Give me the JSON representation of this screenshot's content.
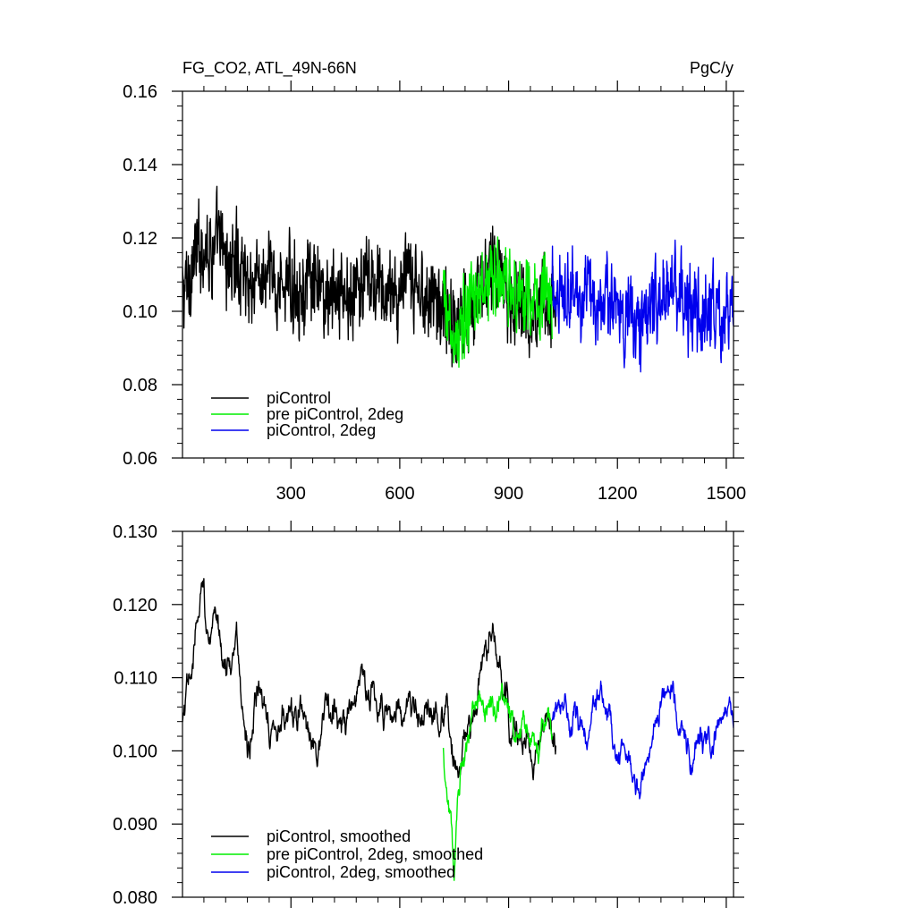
{
  "chart_data": [
    {
      "type": "line",
      "title": "FG_CO2, ATL_49N-66N",
      "units": "PgC/y",
      "xlim": [
        1,
        1520
      ],
      "ylim": [
        0.06,
        0.16
      ],
      "x_ticks": [
        300,
        600,
        900,
        1200,
        1500
      ],
      "y_ticks": [
        0.06,
        0.08,
        0.1,
        0.12,
        0.14,
        0.16
      ],
      "y_tick_labels": [
        "0.06",
        "0.08",
        "0.10",
        "0.12",
        "0.14",
        "0.16"
      ],
      "grid": false,
      "legend_position": "bottom-left",
      "series": [
        {
          "name": "piControl",
          "color": "#000000",
          "x_start": 1,
          "x_end": 1030,
          "mean": 0.107,
          "noise": 0.011,
          "values_by_century": [
            [
              0,
              0.103
            ],
            [
              30,
              0.113
            ],
            [
              60,
              0.12
            ],
            [
              100,
              0.116
            ],
            [
              150,
              0.112
            ],
            [
              200,
              0.108
            ],
            [
              300,
              0.107
            ],
            [
              400,
              0.105
            ],
            [
              500,
              0.106
            ],
            [
              600,
              0.106
            ],
            [
              700,
              0.104
            ],
            [
              750,
              0.096
            ],
            [
              800,
              0.103
            ],
            [
              860,
              0.113
            ],
            [
              900,
              0.104
            ],
            [
              1000,
              0.102
            ],
            [
              1030,
              0.102
            ]
          ]
        },
        {
          "name": "pre piControl, 2deg",
          "color": "#00ee00",
          "x_start": 720,
          "x_end": 1020,
          "mean": 0.104,
          "noise": 0.01,
          "values_by_century": [
            [
              720,
              0.102
            ],
            [
              750,
              0.09
            ],
            [
              780,
              0.098
            ],
            [
              850,
              0.11
            ],
            [
              900,
              0.106
            ],
            [
              950,
              0.105
            ],
            [
              1020,
              0.104
            ]
          ]
        },
        {
          "name": "piControl, 2deg",
          "color": "#0000ee",
          "x_start": 1020,
          "x_end": 1520,
          "mean": 0.102,
          "noise": 0.01,
          "values_by_century": [
            [
              1020,
              0.104
            ],
            [
              1050,
              0.108
            ],
            [
              1100,
              0.103
            ],
            [
              1200,
              0.102
            ],
            [
              1250,
              0.096
            ],
            [
              1300,
              0.102
            ],
            [
              1350,
              0.106
            ],
            [
              1400,
              0.1
            ],
            [
              1450,
              0.098
            ],
            [
              1520,
              0.101
            ]
          ]
        }
      ]
    },
    {
      "type": "line",
      "xlim": [
        1,
        1520
      ],
      "ylim": [
        0.08,
        0.13
      ],
      "x_ticks": [
        300,
        600,
        900,
        1200,
        1500
      ],
      "y_ticks": [
        0.08,
        0.09,
        0.1,
        0.11,
        0.12,
        0.13
      ],
      "y_tick_labels": [
        "0.080",
        "0.090",
        "0.100",
        "0.110",
        "0.120",
        "0.130"
      ],
      "grid": false,
      "legend_position": "bottom-left",
      "series": [
        {
          "name": "piControl, smoothed",
          "color": "#000000",
          "x_start": 1,
          "x_end": 1030,
          "noise": 0.004,
          "values_by_century": [
            [
              0,
              0.103
            ],
            [
              20,
              0.106
            ],
            [
              40,
              0.116
            ],
            [
              60,
              0.124
            ],
            [
              75,
              0.116
            ],
            [
              100,
              0.115
            ],
            [
              150,
              0.113
            ],
            [
              180,
              0.101
            ],
            [
              210,
              0.106
            ],
            [
              250,
              0.107
            ],
            [
              300,
              0.104
            ],
            [
              350,
              0.103
            ],
            [
              400,
              0.106
            ],
            [
              450,
              0.105
            ],
            [
              500,
              0.108
            ],
            [
              600,
              0.106
            ],
            [
              700,
              0.104
            ],
            [
              750,
              0.099
            ],
            [
              800,
              0.102
            ],
            [
              860,
              0.115
            ],
            [
              900,
              0.103
            ],
            [
              960,
              0.1
            ],
            [
              1030,
              0.101
            ]
          ]
        },
        {
          "name": "pre piControl, 2deg, smoothed",
          "color": "#00ee00",
          "x_start": 720,
          "x_end": 1020,
          "noise": 0.0035,
          "values_by_century": [
            [
              720,
              0.1
            ],
            [
              740,
              0.093
            ],
            [
              750,
              0.085
            ],
            [
              770,
              0.095
            ],
            [
              800,
              0.104
            ],
            [
              850,
              0.108
            ],
            [
              900,
              0.104
            ],
            [
              950,
              0.102
            ],
            [
              1020,
              0.103
            ]
          ]
        },
        {
          "name": "piControl, 2deg, smoothed",
          "color": "#0000ee",
          "x_start": 1020,
          "x_end": 1520,
          "noise": 0.0035,
          "values_by_century": [
            [
              1020,
              0.104
            ],
            [
              1050,
              0.11
            ],
            [
              1100,
              0.103
            ],
            [
              1150,
              0.106
            ],
            [
              1200,
              0.1
            ],
            [
              1250,
              0.093
            ],
            [
              1300,
              0.104
            ],
            [
              1350,
              0.112
            ],
            [
              1400,
              0.098
            ],
            [
              1450,
              0.1
            ],
            [
              1520,
              0.101
            ]
          ]
        }
      ]
    }
  ]
}
